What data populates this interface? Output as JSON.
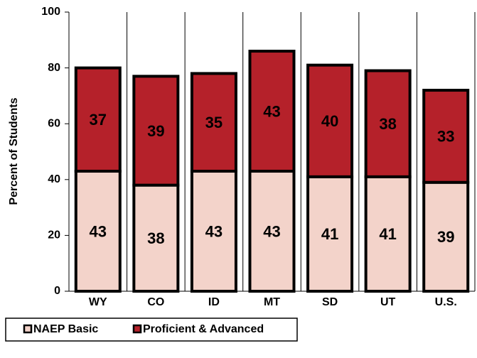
{
  "chart_data": {
    "type": "stacked_bar",
    "y_label": "Percent of Students",
    "categories": [
      "WY",
      "CO",
      "ID",
      "MT",
      "SD",
      "UT",
      "U.S."
    ],
    "series": [
      {
        "name": "NAEP Basic",
        "color": "#f3d3ca",
        "values": [
          43,
          38,
          43,
          43,
          41,
          41,
          39
        ]
      },
      {
        "name": "Proficient & Advanced",
        "color": "#b5212a",
        "values": [
          37,
          39,
          35,
          43,
          40,
          38,
          33
        ]
      }
    ],
    "ylim": [
      0,
      100
    ],
    "yticks": [
      0,
      20,
      40,
      60,
      80,
      100
    ],
    "legend": "bottom-left"
  }
}
